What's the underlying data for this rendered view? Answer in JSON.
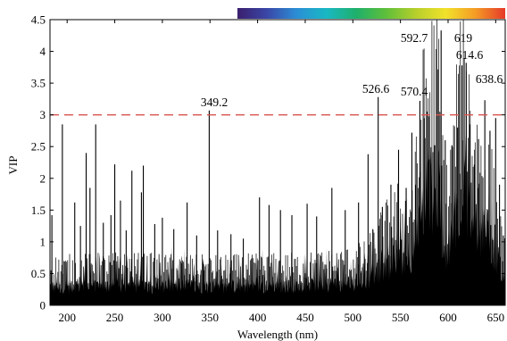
{
  "chart_data": {
    "type": "area",
    "title": "",
    "xlabel": "Wavelength (nm)",
    "ylabel": "VIP",
    "xlim": [
      182,
      660
    ],
    "ylim": [
      0,
      4.5
    ],
    "xticks": [
      {
        "value": 200,
        "label": "200"
      },
      {
        "value": 250,
        "label": "250"
      },
      {
        "value": 300,
        "label": "300"
      },
      {
        "value": 350,
        "label": "350"
      },
      {
        "value": 400,
        "label": "400"
      },
      {
        "value": 450,
        "label": "450"
      },
      {
        "value": 500,
        "label": "500"
      },
      {
        "value": 550,
        "label": "550"
      },
      {
        "value": 600,
        "label": "600"
      },
      {
        "value": 650,
        "label": "650"
      }
    ],
    "yticks": [
      {
        "value": 0,
        "label": "0"
      },
      {
        "value": 0.5,
        "label": "0.5"
      },
      {
        "value": 1,
        "label": "1"
      },
      {
        "value": 1.5,
        "label": "1.5"
      },
      {
        "value": 2,
        "label": "2"
      },
      {
        "value": 2.5,
        "label": "2.5"
      },
      {
        "value": 3,
        "label": "3"
      },
      {
        "value": 3.5,
        "label": "3.5"
      },
      {
        "value": 4,
        "label": "4"
      },
      {
        "value": 4.5,
        "label": "4.5"
      }
    ],
    "threshold": {
      "value": 3,
      "color": "#d9534f",
      "style": "dashed"
    },
    "annotations": [
      {
        "x": 349.2,
        "y": 3.07,
        "label": "349.2"
      },
      {
        "x": 526.6,
        "y": 3.28,
        "label": "526.6"
      },
      {
        "x": 570.4,
        "y": 3.22,
        "label": "570.4"
      },
      {
        "x": 592.7,
        "y": 4.33,
        "label": "592.7"
      },
      {
        "x": 619,
        "y": 3.82,
        "label": "619"
      },
      {
        "x": 614.6,
        "y": 3.78,
        "label": "614.6"
      },
      {
        "x": 638.6,
        "y": 3.23,
        "label": "638.6"
      }
    ],
    "spikes": [
      [
        184,
        1.42
      ],
      [
        195,
        2.85
      ],
      [
        208,
        1.62
      ],
      [
        214,
        1.25
      ],
      [
        220,
        2.4
      ],
      [
        224,
        1.85
      ],
      [
        230,
        2.85
      ],
      [
        238,
        1.3
      ],
      [
        246,
        1.42
      ],
      [
        250,
        2.22
      ],
      [
        256,
        1.65
      ],
      [
        262,
        1.18
      ],
      [
        268,
        2.12
      ],
      [
        278,
        1.78
      ],
      [
        280,
        2.2
      ],
      [
        292,
        1.28
      ],
      [
        300,
        1.38
      ],
      [
        312,
        1.2
      ],
      [
        326,
        1.62
      ],
      [
        336,
        1.1
      ],
      [
        349.2,
        3.07
      ],
      [
        358,
        1.18
      ],
      [
        372,
        1.12
      ],
      [
        385,
        1.05
      ],
      [
        402,
        1.7
      ],
      [
        412,
        1.58
      ],
      [
        424,
        1.5
      ],
      [
        436,
        1.42
      ],
      [
        452,
        1.6
      ],
      [
        462,
        1.4
      ],
      [
        478,
        1.85
      ],
      [
        492,
        1.5
      ],
      [
        506,
        1.62
      ],
      [
        516,
        2.38
      ],
      [
        521,
        1.2
      ],
      [
        526.6,
        3.28
      ],
      [
        531,
        1.55
      ],
      [
        540,
        1.9
      ],
      [
        548,
        2.45
      ],
      [
        556,
        1.85
      ],
      [
        562,
        2.72
      ],
      [
        566,
        1.9
      ],
      [
        570.4,
        3.22
      ],
      [
        575,
        2.95
      ],
      [
        580,
        2.3
      ],
      [
        586,
        2.52
      ],
      [
        592.7,
        4.33
      ],
      [
        597,
        2.6
      ],
      [
        604,
        2.52
      ],
      [
        610,
        2.8
      ],
      [
        614.6,
        3.78
      ],
      [
        619,
        3.82
      ],
      [
        623,
        2.85
      ],
      [
        628,
        2.45
      ],
      [
        632,
        2.62
      ],
      [
        638.6,
        3.23
      ],
      [
        644,
        2.75
      ],
      [
        650,
        2.95
      ],
      [
        654,
        1.9
      ],
      [
        658,
        1.1
      ]
    ],
    "envelope": [
      [
        182,
        0.32
      ],
      [
        250,
        0.34
      ],
      [
        350,
        0.32
      ],
      [
        450,
        0.34
      ],
      [
        500,
        0.38
      ],
      [
        515,
        0.42
      ],
      [
        530,
        0.62
      ],
      [
        545,
        0.78
      ],
      [
        555,
        0.82
      ],
      [
        562,
        0.9
      ],
      [
        568,
        1.15
      ],
      [
        572,
        1.55
      ],
      [
        577,
        1.85
      ],
      [
        582,
        1.95
      ],
      [
        587,
        1.98
      ],
      [
        590,
        1.9
      ],
      [
        593,
        1.4
      ],
      [
        597,
        0.95
      ],
      [
        600,
        0.92
      ],
      [
        604,
        1.2
      ],
      [
        609,
        1.6
      ],
      [
        614,
        1.85
      ],
      [
        618,
        1.92
      ],
      [
        623,
        1.7
      ],
      [
        628,
        1.4
      ],
      [
        634,
        1.25
      ],
      [
        640,
        1.15
      ],
      [
        645,
        1.05
      ],
      [
        650,
        0.82
      ],
      [
        655,
        0.6
      ],
      [
        660,
        0.42
      ]
    ],
    "colorbar": {
      "stops": [
        "#3b1f6e",
        "#3a47a8",
        "#2b8fd6",
        "#19b8c3",
        "#1fb06a",
        "#5fbf3a",
        "#b7cf2b",
        "#f2e12b",
        "#f49b25",
        "#e53a2a"
      ]
    },
    "colors": {
      "fill": "#000000",
      "axis": "#000000"
    }
  }
}
